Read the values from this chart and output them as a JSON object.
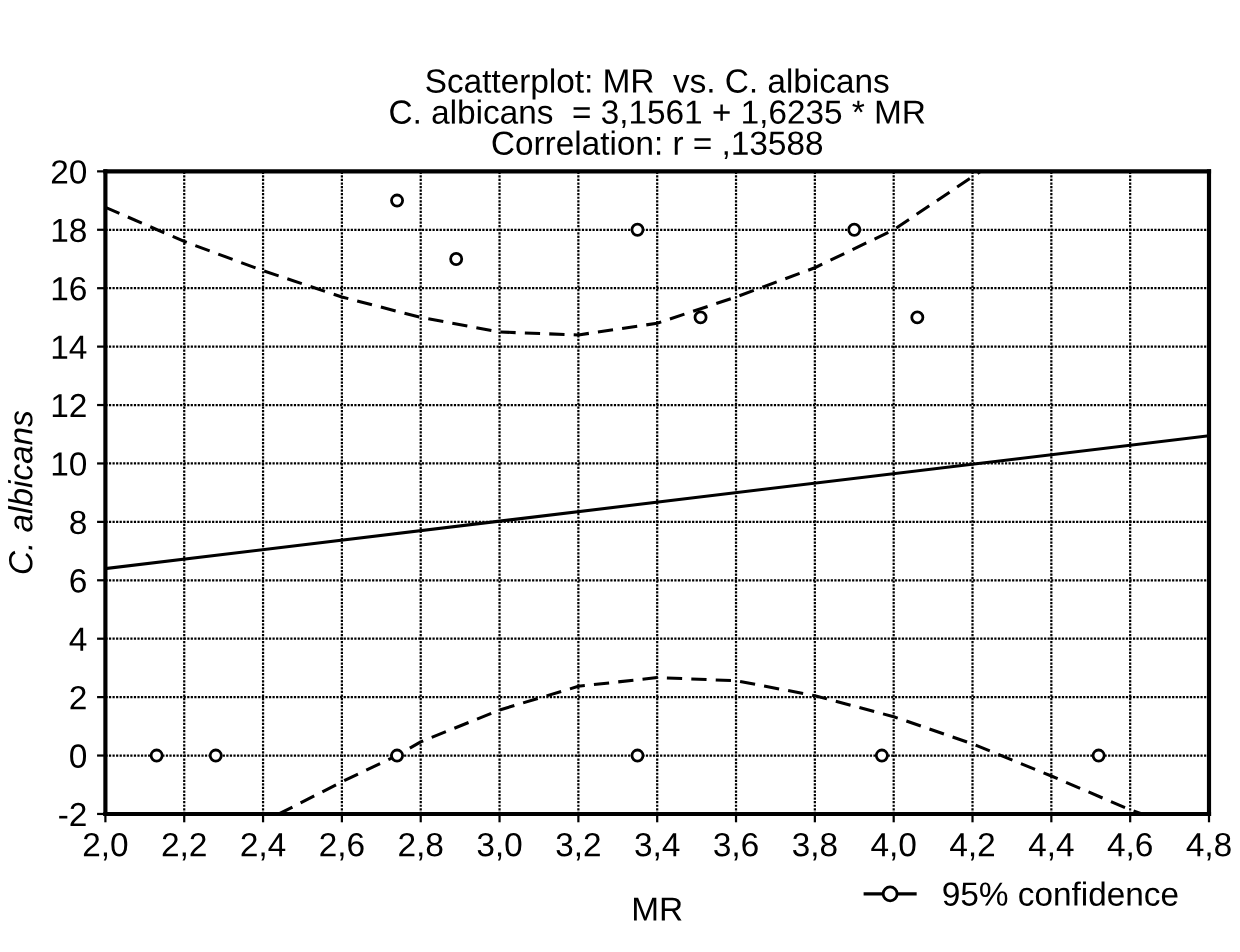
{
  "chart_data": {
    "type": "scatter",
    "title": "Scatterplot: MR  vs. C. albicans\nC. albicans  = 3,1561 + 1,6235 * MR\nCorrelation: r = ,13588",
    "xlabel": "MR",
    "ylabel": "C. albicans",
    "series": [
      {
        "color": "#000000",
        "marker": "circle",
        "x": [
          2.13,
          2.28,
          2.74,
          2.74,
          2.89,
          3.35,
          3.35,
          3.51,
          3.9,
          3.97,
          4.06,
          4.52
        ],
        "values": [
          0,
          0,
          0,
          19,
          17,
          18,
          0,
          15,
          18,
          0,
          15,
          0
        ]
      },
      {
        "type": "line",
        "color": "#000000",
        "line_style": "solid",
        "x": [
          2.0,
          4.8
        ],
        "values": [
          6.4,
          10.95
        ]
      },
      {
        "type": "line",
        "name": "95% confidence",
        "color": "#000000",
        "line_style": "dashed",
        "x": [
          2.0,
          2.2,
          2.4,
          2.6,
          2.8,
          3.0,
          3.2,
          3.4,
          3.6,
          3.8,
          4.0,
          4.22
        ],
        "values": [
          18.77,
          17.6,
          16.6,
          15.7,
          15.0,
          14.5,
          14.4,
          14.8,
          15.7,
          16.7,
          18.0,
          20
        ]
      },
      {
        "type": "line",
        "color": "#000000",
        "line_style": "dashed",
        "x": [
          2.44,
          2.6,
          2.74,
          2.8,
          3.0,
          3.2,
          3.4,
          3.6,
          3.8,
          4.0,
          4.2,
          4.4,
          4.6,
          4.63
        ],
        "values": [
          -2,
          -0.9,
          0,
          0.47,
          1.56,
          2.37,
          2.67,
          2.56,
          2.05,
          1.33,
          0.4,
          -0.7,
          -1.86,
          -2
        ]
      }
    ],
    "xlim": [
      2.0,
      4.8
    ],
    "ylim": [
      -2,
      20
    ],
    "xticks": [
      {
        "value": 2.0,
        "label": "2,0"
      },
      {
        "value": 2.2,
        "label": "2,2"
      },
      {
        "value": 2.4,
        "label": "2,4"
      },
      {
        "value": 2.6,
        "label": "2,6"
      },
      {
        "value": 2.8,
        "label": "2,8"
      },
      {
        "value": 3.0,
        "label": "3,0"
      },
      {
        "value": 3.2,
        "label": "3,2"
      },
      {
        "value": 3.4,
        "label": "3,4"
      },
      {
        "value": 3.6,
        "label": "3,6"
      },
      {
        "value": 3.8,
        "label": "3,8"
      },
      {
        "value": 4.0,
        "label": "4,0"
      },
      {
        "value": 4.2,
        "label": "4,2"
      },
      {
        "value": 4.4,
        "label": "4,4"
      },
      {
        "value": 4.6,
        "label": "4,6"
      },
      {
        "value": 4.8,
        "label": "4,8"
      }
    ],
    "yticks": [
      -2,
      0,
      2,
      4,
      6,
      8,
      10,
      12,
      14,
      16,
      18,
      20
    ],
    "grid": true,
    "legend": "bottom right"
  }
}
